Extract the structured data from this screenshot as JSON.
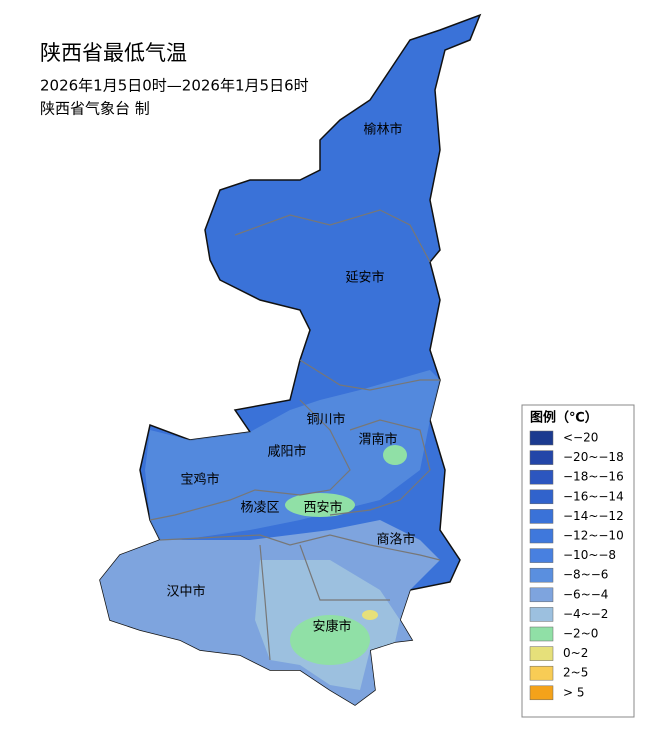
{
  "header": {
    "title": "陕西省最低气温",
    "period": "2026年1月5日0时—2026年1月5日6时",
    "source": "陕西省气象台 制"
  },
  "cities": [
    {
      "label": "榆林市"
    },
    {
      "label": "延安市"
    },
    {
      "label": "铜川市"
    },
    {
      "label": "渭南市"
    },
    {
      "label": "咸阳市"
    },
    {
      "label": "宝鸡市"
    },
    {
      "label": "杨凌区"
    },
    {
      "label": "西安市"
    },
    {
      "label": "商洛市"
    },
    {
      "label": "汉中市"
    },
    {
      "label": "安康市"
    }
  ],
  "legend": {
    "title": "图例（℃）",
    "items": [
      {
        "label": "<−20",
        "color": "#1b3a8f"
      },
      {
        "label": "−20~−18",
        "color": "#2346a8"
      },
      {
        "label": "−18~−16",
        "color": "#2c56bf"
      },
      {
        "label": "−16~−14",
        "color": "#3163cc"
      },
      {
        "label": "−14~−12",
        "color": "#3a72d8"
      },
      {
        "label": "−12~−10",
        "color": "#3f78dc"
      },
      {
        "label": "−10~−8",
        "color": "#4880e0"
      },
      {
        "label": "−8~−6",
        "color": "#5a8fdf"
      },
      {
        "label": "−6~−4",
        "color": "#7ea4de"
      },
      {
        "label": "−4~−2",
        "color": "#9cc0df"
      },
      {
        "label": "−2~0",
        "color": "#90e0a6"
      },
      {
        "label": "0~2",
        "color": "#e6e07a"
      },
      {
        "label": "2~5",
        "color": "#f8cc55"
      },
      {
        "label": "> 5",
        "color": "#f4a21a"
      }
    ]
  }
}
